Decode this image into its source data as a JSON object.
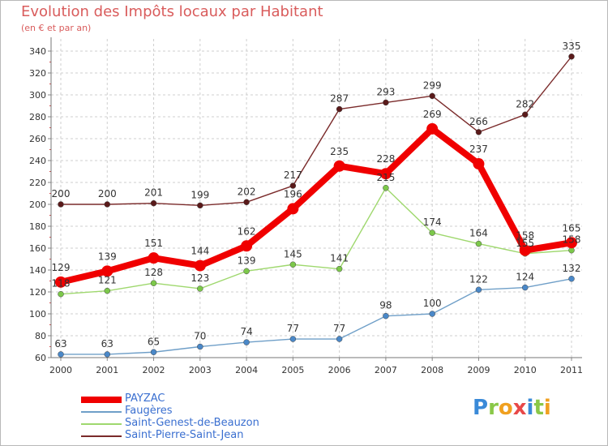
{
  "chart_data": {
    "type": "line",
    "title": "Evolution des Impôts locaux par Habitant",
    "subtitle": "(en € et par an)",
    "categories": [
      "2000",
      "2001",
      "2002",
      "2003",
      "2004",
      "2005",
      "2006",
      "2007",
      "2008",
      "2009",
      "2010",
      "2011"
    ],
    "ylim": [
      60,
      340
    ],
    "yticks": [
      60,
      80,
      100,
      120,
      140,
      160,
      180,
      200,
      220,
      240,
      260,
      280,
      300,
      320,
      340
    ],
    "grid": true,
    "legend_position": "bottom-left",
    "series": [
      {
        "name": "Saint-Pierre-Saint-Jean",
        "color": "#7a2a2a",
        "point_color": "#5a1a1a",
        "values": [
          200,
          200,
          201,
          199,
          202,
          217,
          287,
          293,
          299,
          266,
          282,
          335
        ]
      },
      {
        "name": "Saint-Genest-de-Beauzon",
        "color": "#9fd86e",
        "point_color": "#7cc84a",
        "values": [
          118,
          121,
          128,
          123,
          139,
          145,
          141,
          215,
          174,
          164,
          155,
          158
        ]
      },
      {
        "name": "Faugères",
        "color": "#6f9fc8",
        "point_color": "#4a88c8",
        "values": [
          63,
          63,
          65,
          70,
          74,
          77,
          77,
          98,
          100,
          122,
          124,
          132
        ]
      },
      {
        "name": "PAYZAC",
        "color": "#f00000",
        "point_color": "#f00000",
        "values": [
          129,
          139,
          151,
          144,
          162,
          196,
          235,
          228,
          269,
          237,
          158,
          165
        ]
      }
    ],
    "legend_order": [
      "PAYZAC",
      "Faugères",
      "Saint-Genest-de-Beauzon",
      "Saint-Pierre-Saint-Jean"
    ]
  },
  "logo": {
    "letters": [
      "P",
      "r",
      "o",
      "x",
      "i",
      "t",
      "i"
    ],
    "colors": [
      "#3a8ad8",
      "#8ac848",
      "#f0a020",
      "#e84848",
      "#3a8ad8",
      "#8ac848",
      "#f0a020"
    ]
  }
}
